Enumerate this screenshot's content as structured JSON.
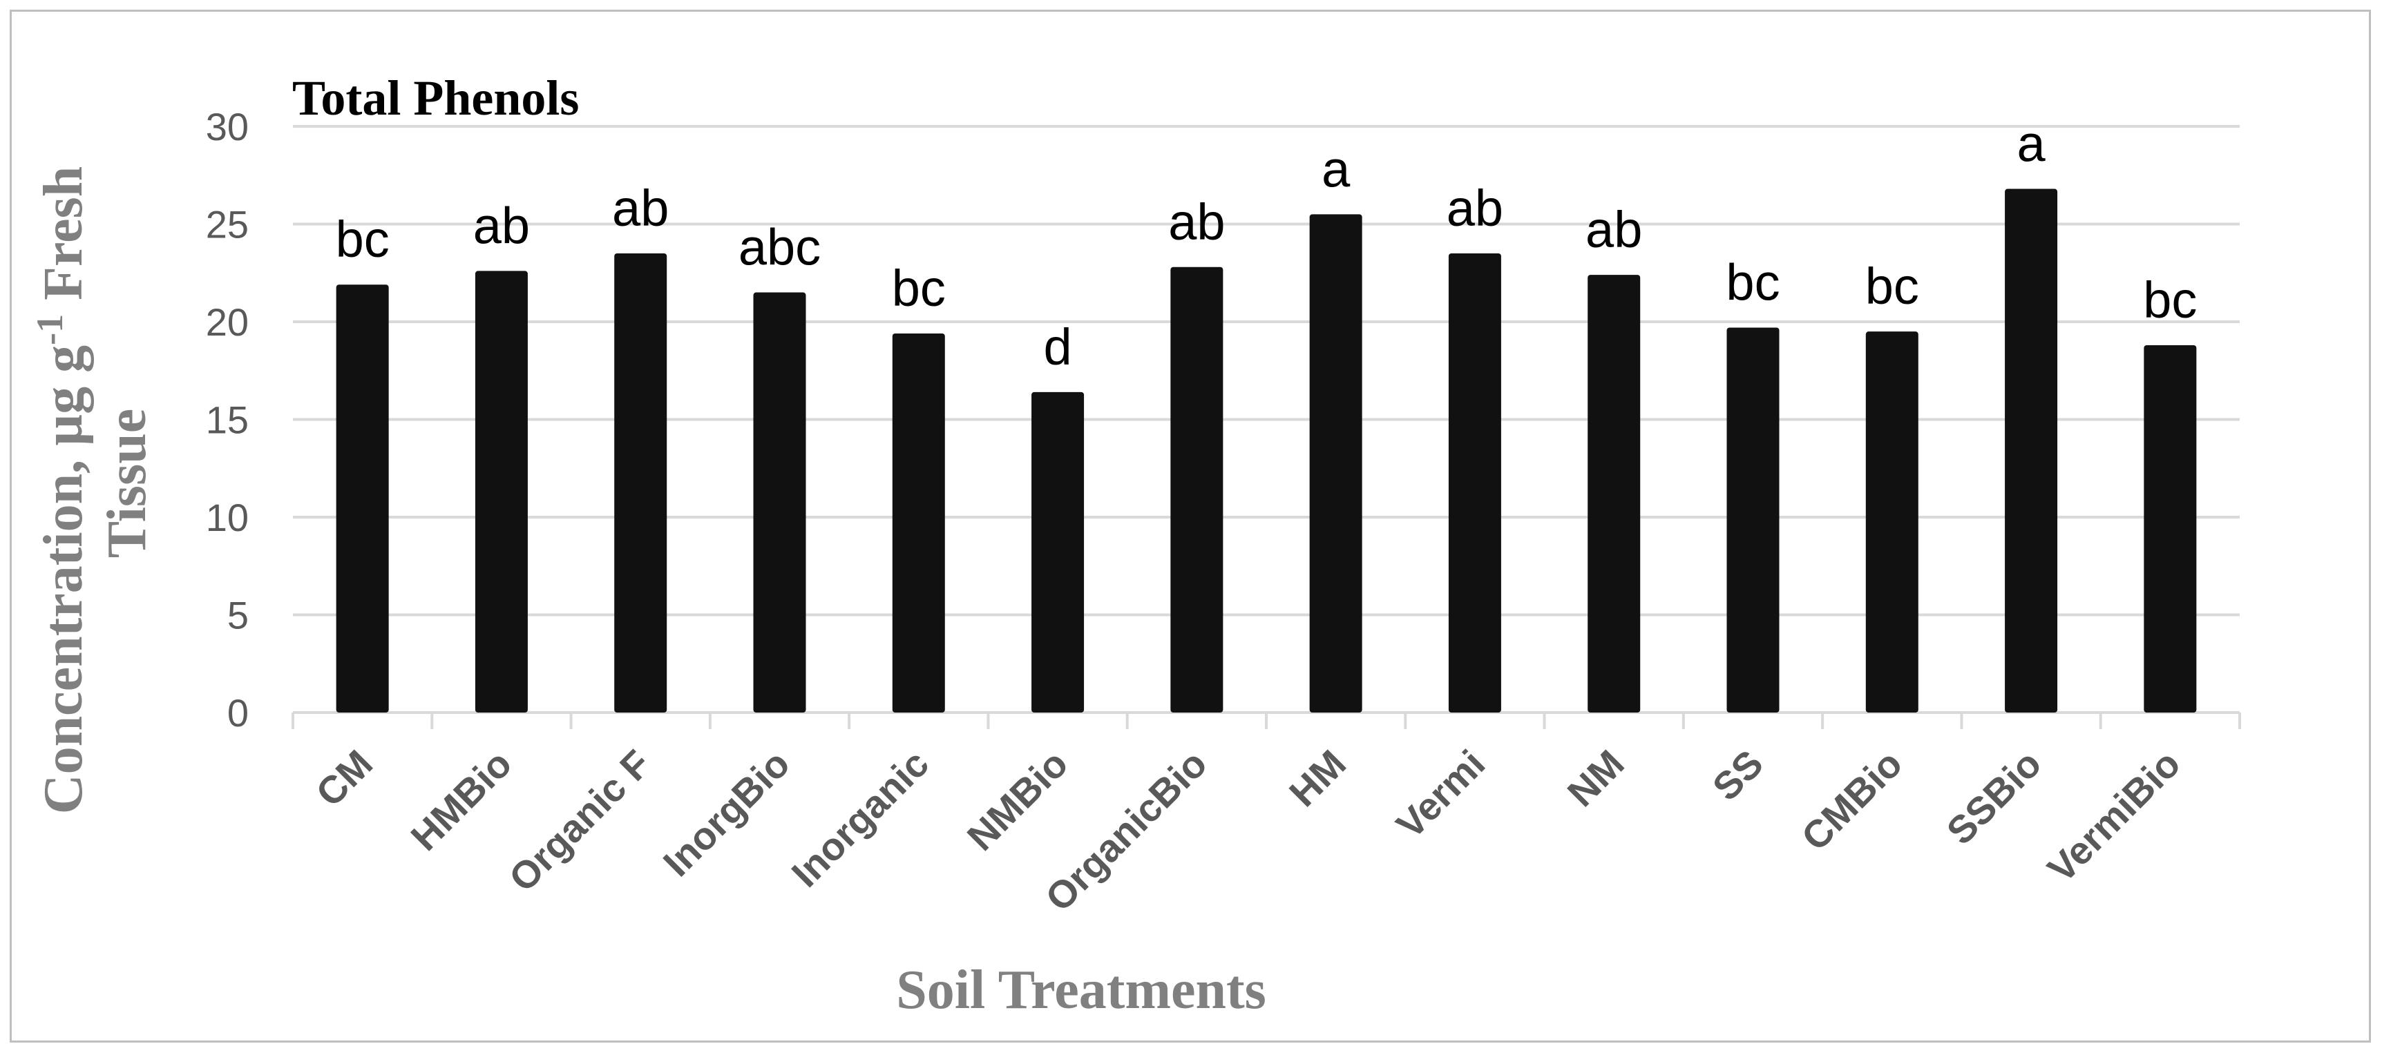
{
  "chart_data": {
    "type": "bar",
    "title": "Total Phenols",
    "xlabel": "Soil Treatments",
    "ylabel_lines": [
      "Concentration, µg g",
      "-1",
      " Fresh",
      "Tissue"
    ],
    "ylim": [
      0,
      30
    ],
    "yticks": [
      0,
      5,
      10,
      15,
      20,
      25,
      30
    ],
    "grid": true,
    "categories": [
      "CM",
      "HMBio",
      "Organic F",
      "InorgBio",
      "Inorganic",
      "NMBio",
      "OrganicBio",
      "HM",
      "Vermi",
      "NM",
      "SS",
      "CMBio",
      "SSBio",
      "VermiBio"
    ],
    "values": [
      21.9,
      22.6,
      23.5,
      21.5,
      19.4,
      16.4,
      22.8,
      25.5,
      23.5,
      22.4,
      19.7,
      19.5,
      26.8,
      18.8
    ],
    "data_labels": [
      "bc",
      "ab",
      "ab",
      "abc",
      "bc",
      "d",
      "ab",
      "a",
      "ab",
      "ab",
      "bc",
      "bc",
      "a",
      "bc"
    ],
    "bar_color": "#111111",
    "grid_color": "#d9d9d9"
  }
}
